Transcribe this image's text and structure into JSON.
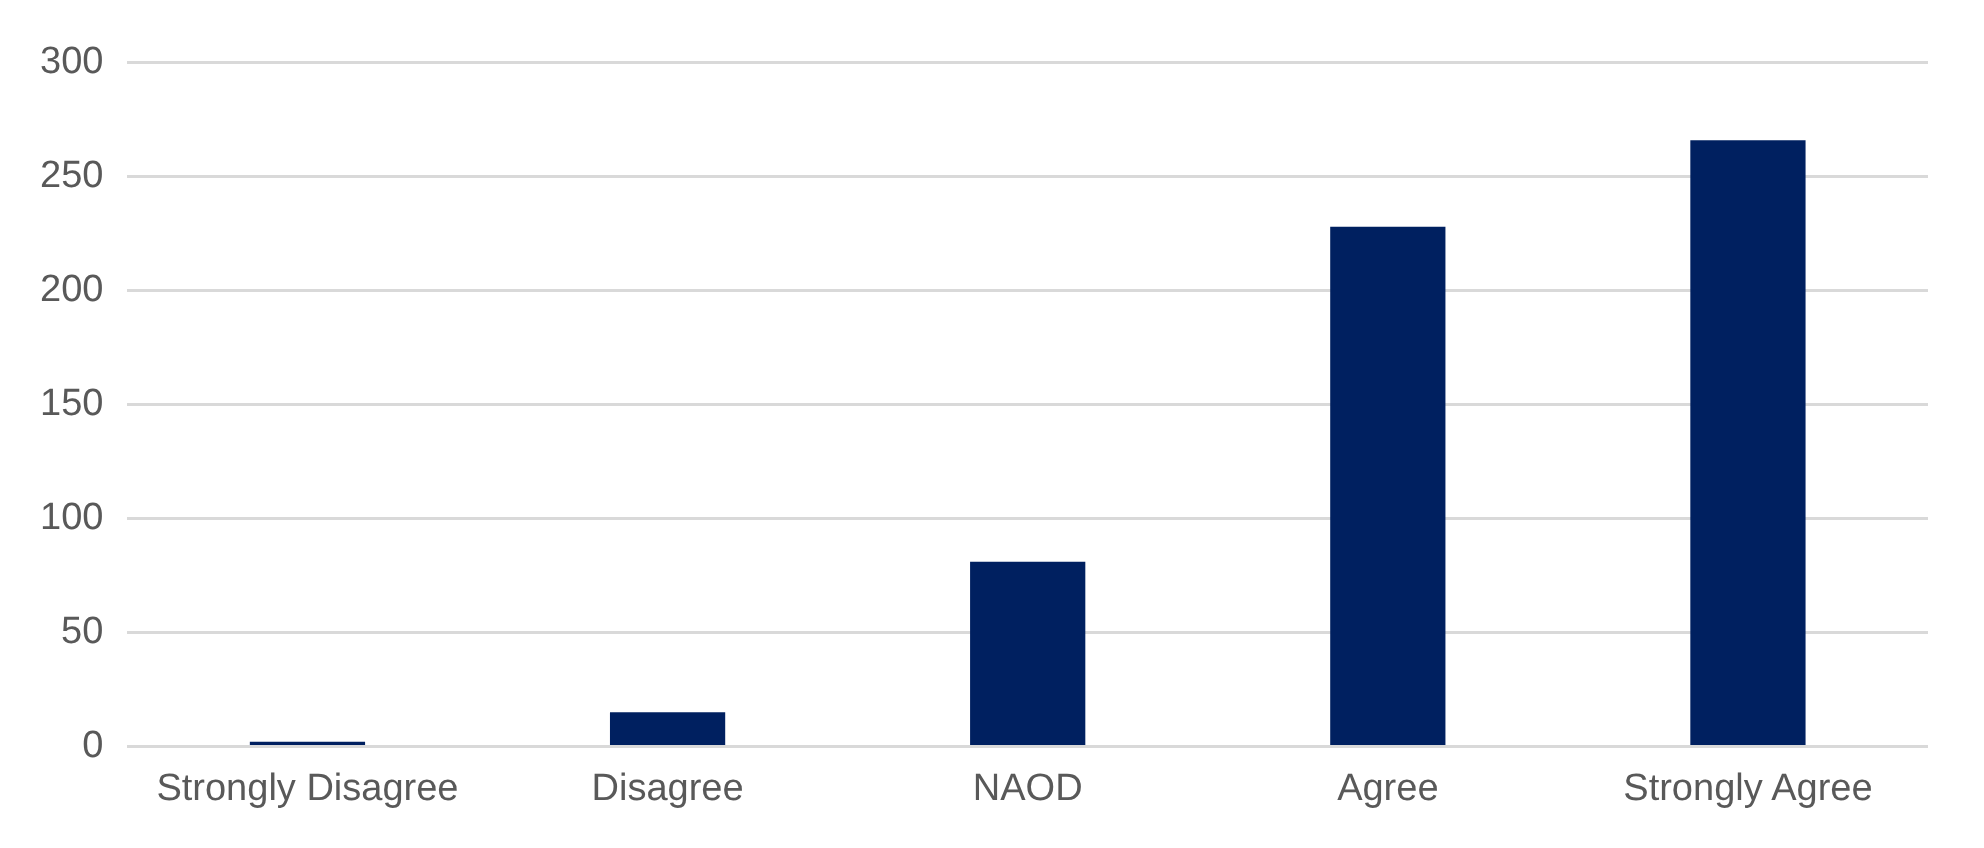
{
  "chart_data": {
    "type": "bar",
    "categories": [
      "Strongly Disagree",
      "Disagree",
      "NAOD",
      "Agree",
      "Strongly Agree"
    ],
    "values": [
      2,
      15,
      81,
      228,
      266
    ],
    "color": "#002060",
    "ylim": [
      0,
      300
    ],
    "yticks": [
      0,
      50,
      100,
      150,
      200,
      250,
      300
    ],
    "grid": "y"
  }
}
